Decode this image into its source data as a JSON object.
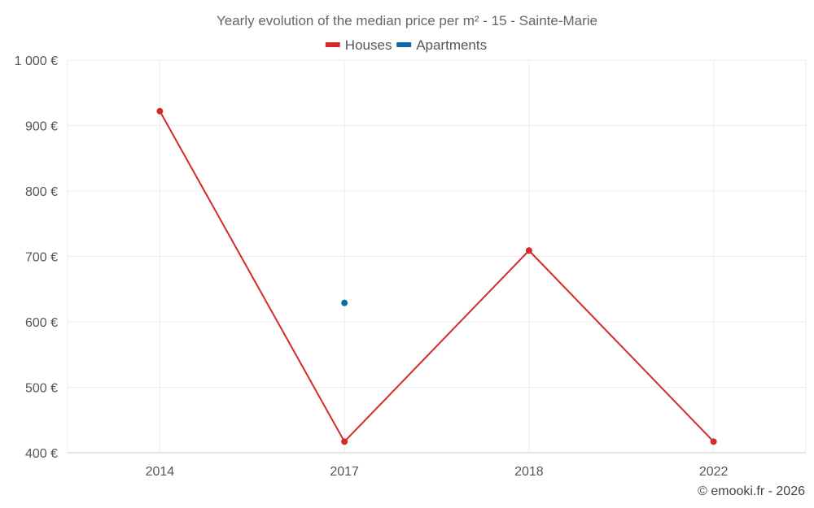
{
  "chart_data": {
    "type": "line",
    "title": "Yearly evolution of the median price per m² - 15 - Sainte-Marie",
    "categories": [
      "2014",
      "2017",
      "2018",
      "2022"
    ],
    "series": [
      {
        "name": "Houses",
        "color": "#d42a2a",
        "values": [
          922,
          417,
          709,
          417
        ]
      },
      {
        "name": "Apartments",
        "color": "#0b6a9f",
        "values": [
          null,
          629,
          null,
          null
        ]
      }
    ],
    "y_ticks": [
      400,
      500,
      600,
      700,
      800,
      900,
      1000
    ],
    "y_tick_labels": [
      "400 €",
      "500 €",
      "600 €",
      "700 €",
      "800 €",
      "900 €",
      "1 000 €"
    ],
    "ylim": [
      400,
      1000
    ],
    "xlabel": "",
    "ylabel": "",
    "grid": true,
    "legend_position": "top-center"
  },
  "credit": "© emooki.fr - 2026"
}
